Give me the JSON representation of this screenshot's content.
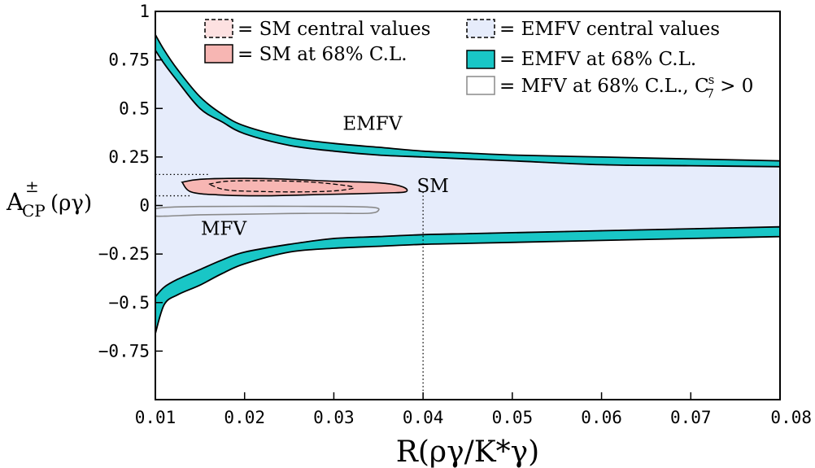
{
  "chart_data": {
    "type": "area",
    "xlabel": "R(ργ/K*γ)",
    "ylabel_base": "A",
    "ylabel_sup": "±",
    "ylabel_sub": "CP",
    "ylabel_tail": "(ργ)",
    "xlim": [
      0.01,
      0.08
    ],
    "ylim": [
      -1.0,
      1.0
    ],
    "x_ticks": [
      0.01,
      0.02,
      0.03,
      0.04,
      0.05,
      0.06,
      0.07,
      0.08
    ],
    "x_tick_labels": [
      "0.01",
      "0.02",
      "0.03",
      "0.04",
      "0.05",
      "0.06",
      "0.07",
      "0.08"
    ],
    "y_ticks": [
      1,
      0.75,
      0.5,
      0.25,
      0,
      -0.25,
      -0.5,
      -0.75
    ],
    "y_tick_labels": [
      "1",
      "0.75",
      "0.5",
      "0.25",
      "0",
      "−0.25",
      "−0.5",
      "−0.75"
    ],
    "legend": [
      {
        "key": "sm_central",
        "label": "= SM central values"
      },
      {
        "key": "sm_68",
        "label": "= SM at 68% C.L."
      },
      {
        "key": "emfv_central",
        "label": "= EMFV central values"
      },
      {
        "key": "emfv_68",
        "label": "= EMFV at 68% C.L."
      },
      {
        "key": "mfv_68",
        "label_main": "= MFV at 68% C.L., C",
        "label_sub": "7",
        "label_sup": "s",
        "label_tail": " > 0"
      }
    ],
    "annotations": [
      {
        "text": "EMFV",
        "x": 0.031,
        "y": 0.39
      },
      {
        "text": "SM",
        "x": 0.0393,
        "y": 0.07
      },
      {
        "text": "MFV",
        "x": 0.0151,
        "y": -0.15
      }
    ],
    "colors": {
      "emfv_central_fill": "#e6ecfb",
      "emfv_68_fill": "#19c6c6",
      "sm_68_fill": "#f7b6b3",
      "sm_central_fill": "#fde1e1",
      "mfv_stroke": "#8a8a8a"
    },
    "series": [
      {
        "key": "emfv_upper_outer",
        "x": [
          0.01,
          0.011,
          0.0125,
          0.015,
          0.0175,
          0.02,
          0.025,
          0.03,
          0.035,
          0.04,
          0.045,
          0.05,
          0.06,
          0.07,
          0.08
        ],
        "y": [
          0.88,
          0.8,
          0.7,
          0.56,
          0.47,
          0.41,
          0.35,
          0.32,
          0.3,
          0.28,
          0.27,
          0.26,
          0.25,
          0.24,
          0.23
        ]
      },
      {
        "key": "emfv_upper_inner",
        "x": [
          0.01,
          0.011,
          0.0125,
          0.015,
          0.0175,
          0.02,
          0.025,
          0.03,
          0.035,
          0.04,
          0.045,
          0.05,
          0.06,
          0.07,
          0.08
        ],
        "y": [
          0.8,
          0.73,
          0.64,
          0.5,
          0.43,
          0.37,
          0.31,
          0.28,
          0.26,
          0.25,
          0.24,
          0.23,
          0.21,
          0.205,
          0.2
        ]
      },
      {
        "key": "emfv_lower_inner",
        "x": [
          0.01,
          0.011,
          0.0125,
          0.015,
          0.0175,
          0.02,
          0.025,
          0.03,
          0.035,
          0.04,
          0.045,
          0.05,
          0.06,
          0.07,
          0.08
        ],
        "y": [
          -0.47,
          -0.42,
          -0.38,
          -0.33,
          -0.28,
          -0.24,
          -0.2,
          -0.17,
          -0.16,
          -0.15,
          -0.145,
          -0.14,
          -0.13,
          -0.12,
          -0.11
        ]
      },
      {
        "key": "emfv_lower_outer",
        "x": [
          0.01,
          0.011,
          0.0125,
          0.015,
          0.0175,
          0.02,
          0.025,
          0.03,
          0.035,
          0.04,
          0.045,
          0.05,
          0.06,
          0.07,
          0.08
        ],
        "y": [
          -0.66,
          -0.51,
          -0.46,
          -0.41,
          -0.35,
          -0.3,
          -0.24,
          -0.22,
          -0.21,
          -0.2,
          -0.195,
          -0.19,
          -0.18,
          -0.17,
          -0.16
        ]
      },
      {
        "key": "sm_68_contour",
        "x": [
          0.013,
          0.015,
          0.02,
          0.025,
          0.03,
          0.034,
          0.0365,
          0.038,
          0.038,
          0.036,
          0.032,
          0.027,
          0.022,
          0.017,
          0.014,
          0.013
        ],
        "y": [
          0.12,
          0.135,
          0.14,
          0.135,
          0.125,
          0.12,
          0.11,
          0.09,
          0.07,
          0.065,
          0.06,
          0.055,
          0.05,
          0.055,
          0.07,
          0.12
        ]
      },
      {
        "key": "sm_central_contour",
        "x": [
          0.016,
          0.018,
          0.022,
          0.027,
          0.031,
          0.0322,
          0.03,
          0.026,
          0.022,
          0.018,
          0.016
        ],
        "y": [
          0.11,
          0.125,
          0.128,
          0.122,
          0.105,
          0.09,
          0.075,
          0.07,
          0.072,
          0.08,
          0.11
        ]
      },
      {
        "key": "mfv_68_contour",
        "x": [
          0.0097,
          0.011,
          0.015,
          0.02,
          0.026,
          0.031,
          0.0345,
          0.035,
          0.034,
          0.03,
          0.025,
          0.02,
          0.015,
          0.011,
          0.0098,
          0.0097
        ],
        "y": [
          -0.02,
          -0.01,
          -0.005,
          -0.004,
          -0.004,
          -0.005,
          -0.01,
          -0.025,
          -0.04,
          -0.04,
          -0.041,
          -0.045,
          -0.048,
          -0.055,
          -0.05,
          -0.02
        ]
      },
      {
        "key": "dotted_guides",
        "x": [
          0.0095,
          0.04
        ],
        "y": [
          0.16,
          0.05
        ]
      }
    ]
  }
}
